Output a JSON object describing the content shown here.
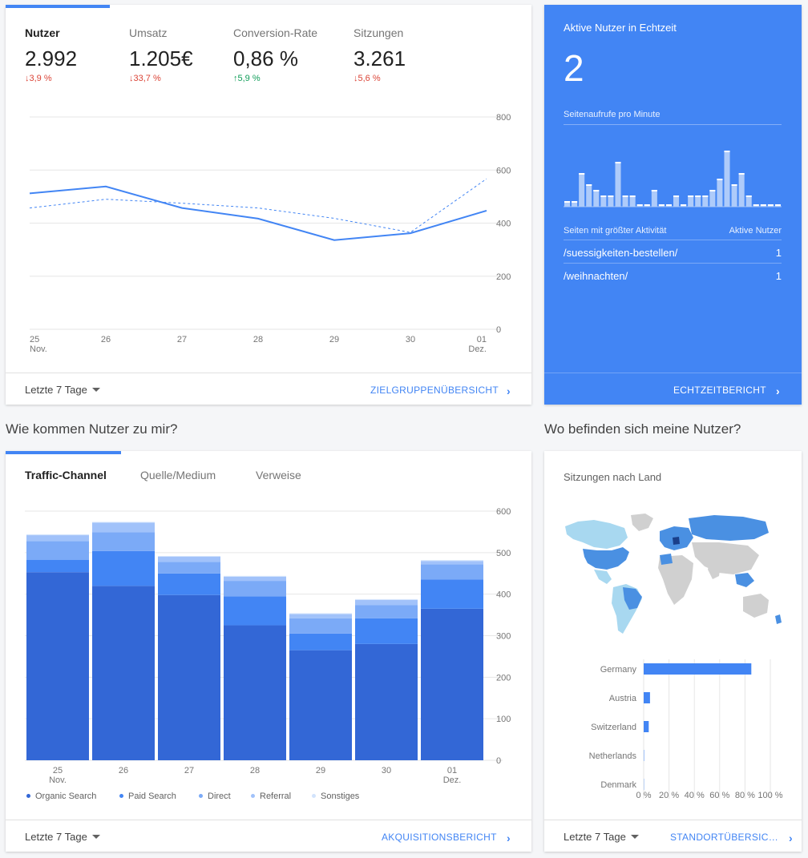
{
  "kpis": [
    {
      "label": "Nutzer",
      "value": "2.992",
      "delta": "↓3,9 %",
      "direction": "down"
    },
    {
      "label": "Umsatz",
      "value": "1.205€",
      "delta": "↓33,7 %",
      "direction": "down"
    },
    {
      "label": "Conversion-Rate",
      "value": "0,86 %",
      "delta": "↑5,9 %",
      "direction": "up"
    },
    {
      "label": "Sitzungen",
      "value": "3.261",
      "delta": "↓5,6 %",
      "direction": "down"
    }
  ],
  "overview_chart": {
    "type": "line",
    "x": [
      "25",
      "26",
      "27",
      "28",
      "29",
      "30",
      "01"
    ],
    "x_sub": [
      "Nov.",
      "",
      "",
      "",
      "",
      "",
      "Dez."
    ],
    "y_ticks": [
      "0",
      "200",
      "400",
      "600",
      "800"
    ],
    "ylim": [
      0,
      800
    ],
    "series": [
      {
        "values": [
          512,
          538,
          457,
          417,
          336,
          362,
          447
        ],
        "color": "#4285f4"
      },
      {
        "values": [
          457,
          490,
          475,
          457,
          418,
          365,
          567
        ],
        "color": "#4285f4",
        "dashed": true
      }
    ]
  },
  "overview_footer": {
    "range": "Letzte 7 Tage",
    "link": "ZIELGRUPPENÜBERSICHT"
  },
  "realtime": {
    "title": "Aktive Nutzer in Echtzeit",
    "count": "2",
    "subtitle": "Seitenaufrufe pro Minute",
    "bars": [
      1,
      1,
      6,
      4,
      3,
      2,
      2,
      8,
      2,
      2,
      0,
      0,
      3,
      0,
      0,
      2,
      0,
      2,
      2,
      2,
      3,
      5,
      10,
      4,
      6,
      2,
      0,
      0,
      0,
      0
    ],
    "table_header_page": "Seiten mit größter Aktivität",
    "table_header_users": "Aktive Nutzer",
    "rows": [
      {
        "page": "/suessigkeiten-bestellen/",
        "users": "1"
      },
      {
        "page": "/weihnachten/",
        "users": "1"
      }
    ],
    "link": "ECHTZEITBERICHT"
  },
  "acquisition": {
    "section_title": "Wie kommen Nutzer zu mir?",
    "tabs": [
      "Traffic-Channel",
      "Quelle/Medium",
      "Verweise"
    ],
    "chart": {
      "type": "bar",
      "stacked": true,
      "categories": [
        "25",
        "26",
        "27",
        "28",
        "29",
        "30",
        "01"
      ],
      "category_sub": [
        "Nov.",
        "",
        "",
        "",
        "",
        "",
        "Dez."
      ],
      "y_ticks": [
        "0",
        "100",
        "200",
        "300",
        "400",
        "500",
        "600"
      ],
      "ylim": [
        0,
        600
      ],
      "series": [
        {
          "name": "Organic Search",
          "color": "#3367d6",
          "values": [
            453,
            420,
            398,
            325,
            265,
            280,
            365
          ]
        },
        {
          "name": "Paid Search",
          "color": "#4285f4",
          "values": [
            30,
            84,
            52,
            70,
            40,
            62,
            70
          ]
        },
        {
          "name": "Direct",
          "color": "#7baaf7",
          "values": [
            45,
            45,
            28,
            37,
            37,
            32,
            37
          ]
        },
        {
          "name": "Referral",
          "color": "#a1c2fa",
          "values": [
            14,
            23,
            12,
            10,
            10,
            12,
            8
          ]
        },
        {
          "name": "Sonstiges",
          "color": "#d2e3fc",
          "values": [
            2,
            2,
            2,
            2,
            2,
            2,
            2
          ]
        }
      ]
    },
    "footer": {
      "range": "Letzte 7 Tage",
      "link": "AKQUISITIONSBERICHT"
    }
  },
  "geo": {
    "section_title": "Wo befinden sich meine Nutzer?",
    "card_title": "Sitzungen nach Land",
    "chart": {
      "type": "bar",
      "orientation": "horizontal",
      "categories": [
        "Germany",
        "Austria",
        "Switzerland",
        "Netherlands",
        "Denmark"
      ],
      "values": [
        85,
        5,
        4,
        0.3,
        0.2
      ],
      "x_ticks": [
        "0 %",
        "20 %",
        "40 %",
        "60 %",
        "80 %",
        "100 %"
      ],
      "xlim": [
        0,
        100
      ]
    },
    "footer": {
      "range": "Letzte 7 Tage",
      "link": "STANDORTÜBERSIC…"
    }
  }
}
